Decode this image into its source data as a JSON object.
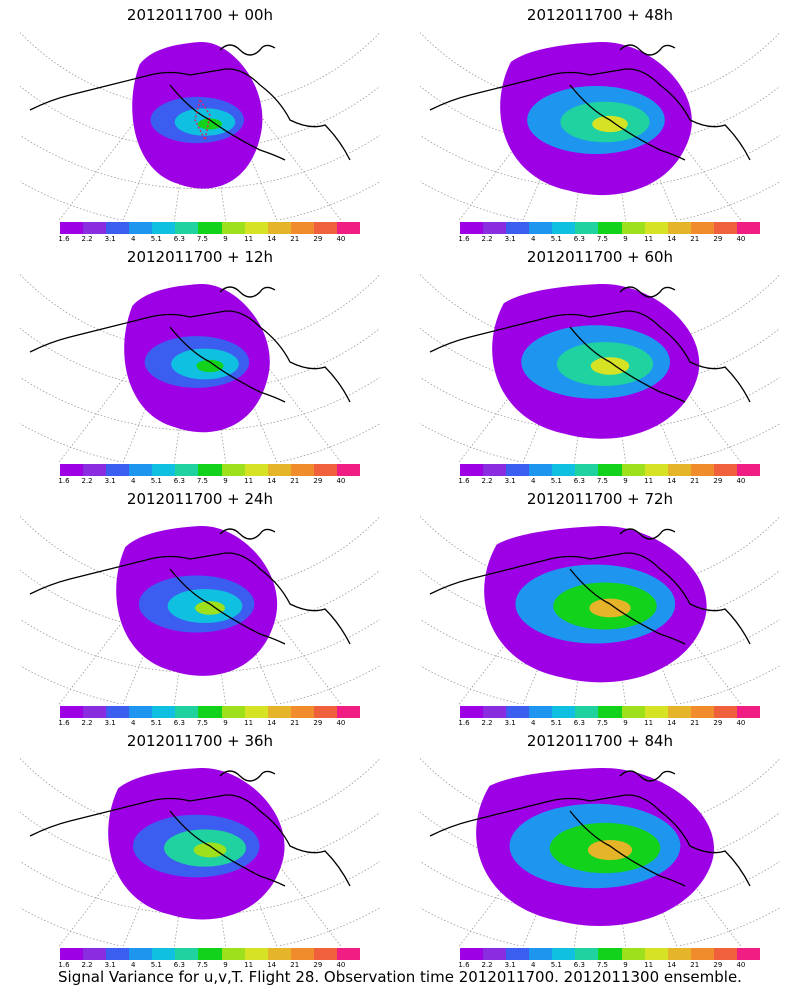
{
  "panels": [
    {
      "title": "2012011700 + 00h",
      "level": 0,
      "flight_track": true
    },
    {
      "title": "2012011700 + 12h",
      "level": 1,
      "flight_track": false
    },
    {
      "title": "2012011700 + 24h",
      "level": 2,
      "flight_track": false
    },
    {
      "title": "2012011700 + 36h",
      "level": 3,
      "flight_track": false
    },
    {
      "title": "2012011700 + 48h",
      "level": 4,
      "flight_track": false
    },
    {
      "title": "2012011700 + 60h",
      "level": 5,
      "flight_track": false
    },
    {
      "title": "2012011700 + 72h",
      "level": 6,
      "flight_track": false
    },
    {
      "title": "2012011700 + 84h",
      "level": 7,
      "flight_track": false
    }
  ],
  "colorbar": {
    "labels": [
      "1.6",
      "2.2",
      "3.1",
      "4",
      "5.1",
      "6.3",
      "7.5",
      "9",
      "11",
      "14",
      "21",
      "29",
      "40"
    ],
    "colors": [
      "#9e00e6",
      "#8a2ce0",
      "#3c5ef0",
      "#1e96f0",
      "#10c0e0",
      "#20d2a0",
      "#12d21c",
      "#9ee01c",
      "#d6e224",
      "#e6b428",
      "#f08c2c",
      "#f0603c",
      "#f01e82"
    ]
  },
  "footer": "Signal Variance for u,v,T. Flight 28. Observation time 2012011700. 2012011300 ensemble."
}
